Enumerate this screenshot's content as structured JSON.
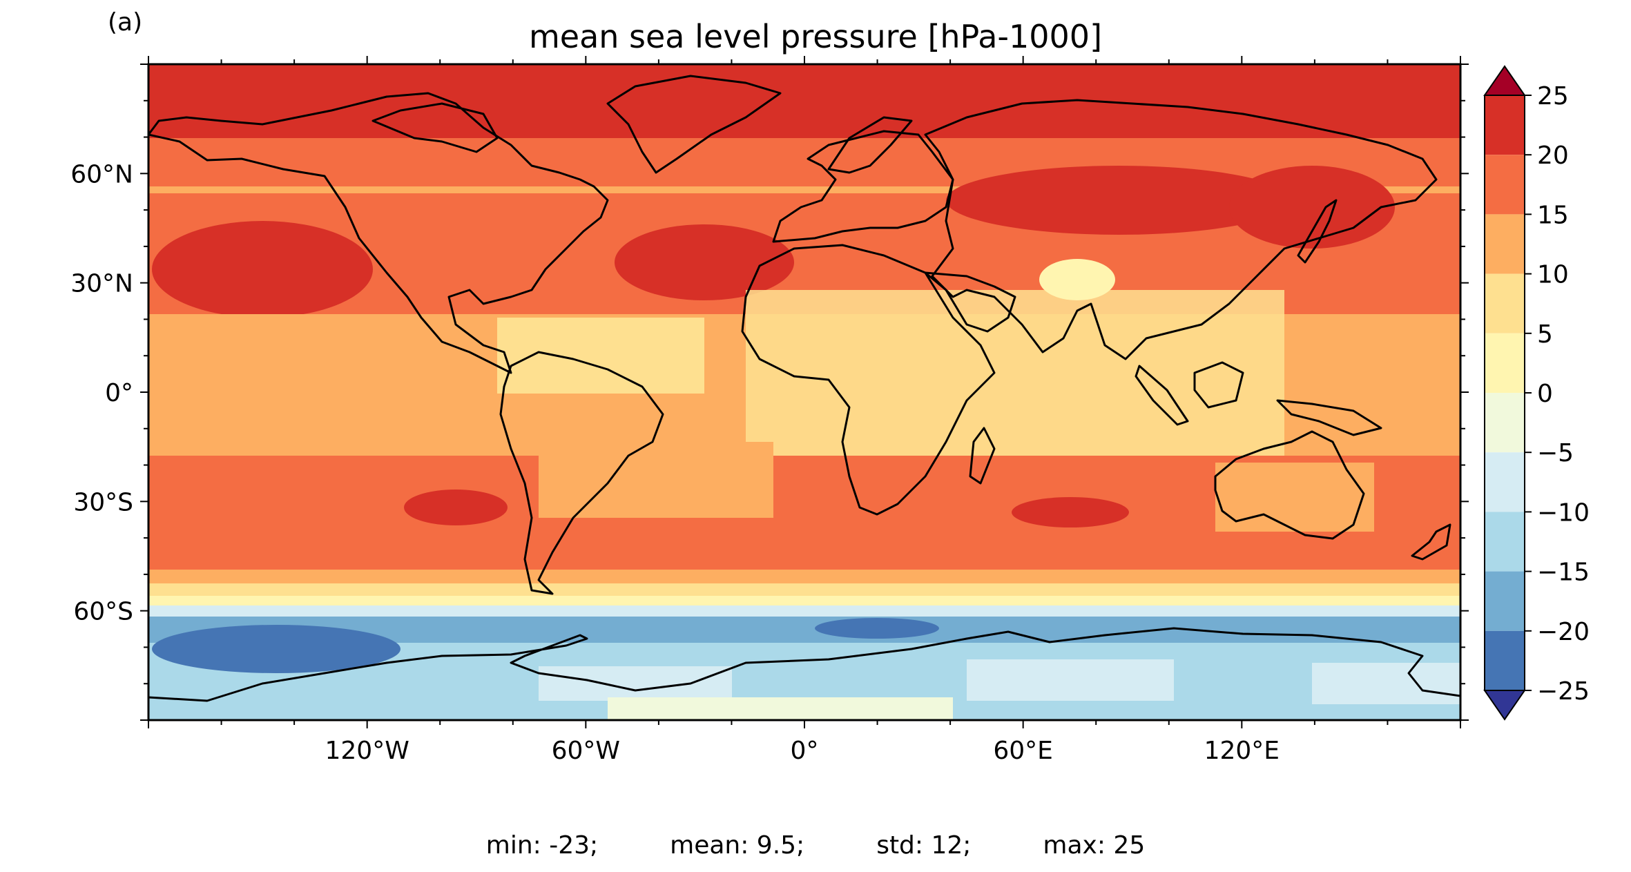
{
  "panel_label": "(a)",
  "title": "mean sea level pressure [hPa-1000]",
  "latitude_ticks": [
    "60°N",
    "30°N",
    "0°",
    "30°S",
    "60°S"
  ],
  "latitude_values": [
    60,
    30,
    0,
    -30,
    -60
  ],
  "longitude_ticks": [
    "120°W",
    "60°W",
    "0°",
    "60°E",
    "120°E"
  ],
  "longitude_values": [
    -120,
    -60,
    0,
    60,
    120
  ],
  "colorbar": {
    "labels": [
      "25",
      "20",
      "15",
      "10",
      "5",
      "0",
      "−5",
      "−10",
      "−15",
      "−20",
      "−25"
    ],
    "levels": [
      25,
      20,
      15,
      10,
      5,
      0,
      -5,
      -10,
      -15,
      -20,
      -25
    ],
    "colors_top_to_bottom": [
      "#d73027",
      "#f46d43",
      "#fdae61",
      "#fee090",
      "#fff5b0",
      "#f1f9dc",
      "#d6ecf3",
      "#abd9e9",
      "#74add1",
      "#4575b4"
    ],
    "extend_max_color": "#a50026",
    "extend_min_color": "#313695"
  },
  "stats": {
    "min": "min: -23;",
    "mean": "mean: 9.5;",
    "std": "std: 12;",
    "max": "max: 25"
  }
}
